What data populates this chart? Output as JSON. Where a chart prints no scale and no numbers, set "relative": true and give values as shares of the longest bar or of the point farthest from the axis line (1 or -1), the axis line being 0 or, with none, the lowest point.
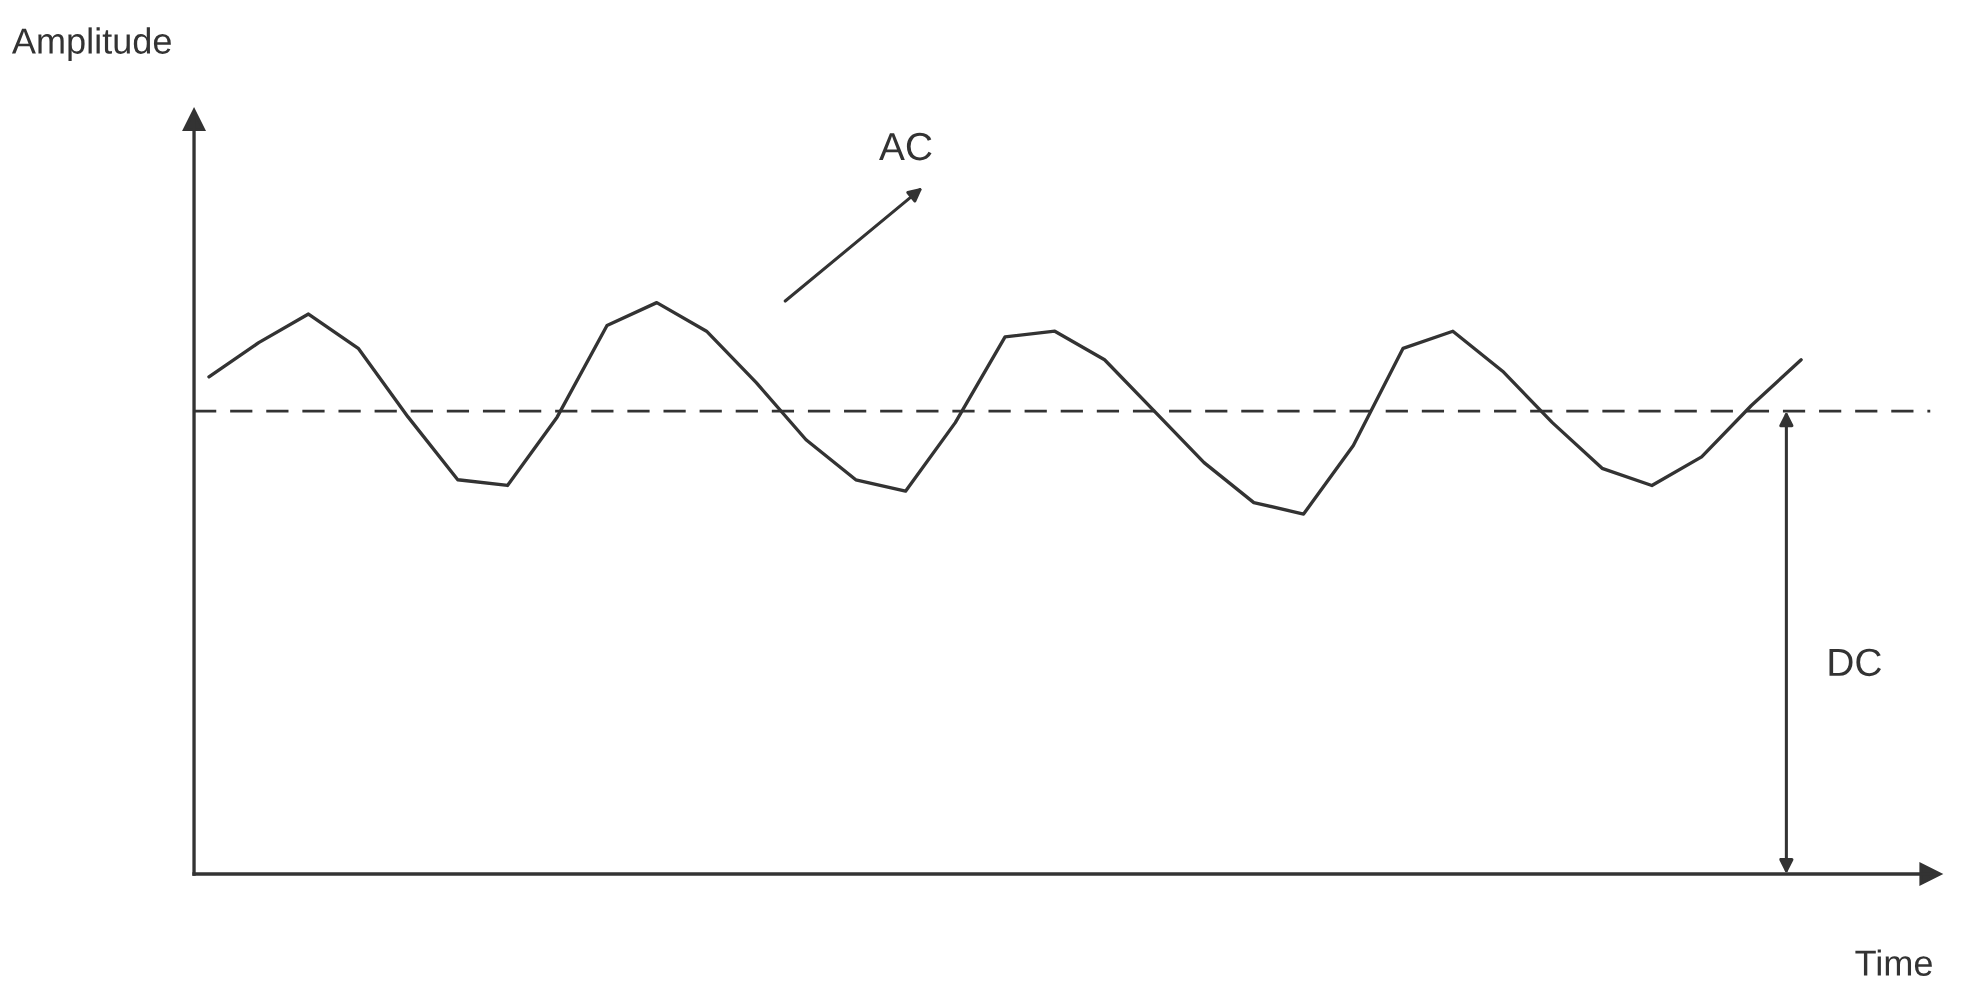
{
  "chart_data": {
    "type": "line",
    "relative": true,
    "xlabel": "Time",
    "categories": [
      null,
      null,
      null,
      null,
      null,
      null,
      null,
      null,
      null,
      null,
      null,
      null,
      null,
      null,
      null,
      null,
      null,
      null,
      null,
      null,
      null,
      null,
      null,
      null,
      null,
      null,
      null,
      null,
      null,
      null,
      null,
      null,
      null
    ],
    "series": [
      {
        "color": "#333333",
        "values": [
          0.87,
          0.93,
          0.98,
          0.92,
          0.8,
          0.69,
          0.68,
          0.8,
          0.96,
          1.0,
          0.95,
          0.86,
          0.76,
          0.69,
          0.67,
          0.79,
          0.94,
          0.95,
          0.9,
          0.81,
          0.72,
          0.65,
          0.63,
          0.75,
          0.92,
          0.95,
          0.88,
          0.79,
          0.71,
          0.68,
          0.73,
          0.82,
          0.9
        ]
      }
    ],
    "ref_lines": [
      {
        "axis": "y",
        "value": 0.81,
        "label": "DC",
        "color": "#333333",
        "line_style": "dashed"
      }
    ],
    "annotations": [
      "Amplitude",
      "AC"
    ],
    "grid": false,
    "legend": false
  }
}
